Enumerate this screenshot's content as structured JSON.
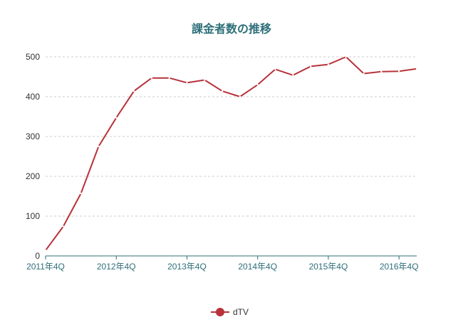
{
  "colors": {
    "line": "#b8323a",
    "title": "#2e6f79",
    "axis": "#2e6f79",
    "grid": "#cccccc"
  },
  "chart_data": {
    "type": "line",
    "title": "課金者数の推移",
    "xlabel": "",
    "ylabel": "",
    "ylim": [
      0,
      500
    ],
    "yticks": [
      0,
      100,
      200,
      300,
      400,
      500
    ],
    "grid": "horizontal dashed",
    "legend_position": "bottom-center",
    "x": [
      "2011年4Q",
      "2012年1Q",
      "2012年2Q",
      "2012年3Q",
      "2012年4Q",
      "2013年1Q",
      "2013年2Q",
      "2013年3Q",
      "2013年4Q",
      "2014年1Q",
      "2014年2Q",
      "2014年3Q",
      "2014年4Q",
      "2015年1Q",
      "2015年2Q",
      "2015年3Q",
      "2015年4Q",
      "2016年1Q",
      "2016年2Q",
      "2016年3Q",
      "2016年4Q",
      "2017年1Q"
    ],
    "xtick_labels": [
      "2011年4Q",
      "2012年4Q",
      "2013年4Q",
      "2014年4Q",
      "2015年4Q",
      "2016年4Q"
    ],
    "series": [
      {
        "name": "dTV",
        "values": [
          14,
          74,
          157,
          275,
          347,
          414,
          447,
          447,
          435,
          442,
          414,
          400,
          430,
          469,
          454,
          476,
          481,
          500,
          458,
          463,
          464,
          470
        ]
      }
    ]
  }
}
